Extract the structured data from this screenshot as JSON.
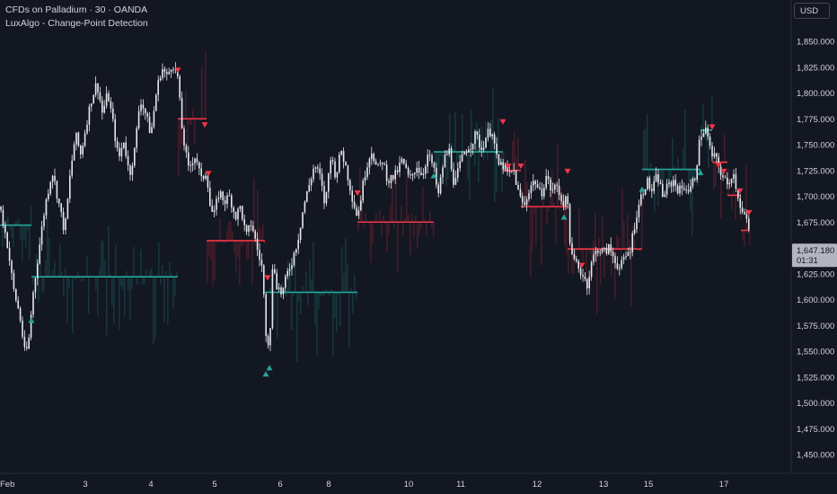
{
  "header": {
    "title": "CFDs on Palladium · 30 · OANDA",
    "indicator": "LuxAlgo - Change-Point Detection"
  },
  "currency": "USD",
  "price_badge": {
    "price": "1,647.180",
    "countdown": "01:31"
  },
  "colors": {
    "background": "#131722",
    "candle": "#e6e8ee",
    "bull": "#26a69a",
    "bear": "#f23645",
    "axis_text": "#d1d4dc",
    "badge": "#b2b5be"
  },
  "chart_data": {
    "type": "line",
    "title": "CFDs on Palladium · 30 · OANDA",
    "indicator": "LuxAlgo - Change-Point Detection",
    "xlabel": "",
    "ylabel": "",
    "ylim": [
      1425,
      1875
    ],
    "y_ticks": [
      1850,
      1825,
      1800,
      1775,
      1750,
      1725,
      1700,
      1675,
      1625,
      1600,
      1575,
      1550,
      1525,
      1500,
      1475,
      1450
    ],
    "y_tick_labels": [
      "1,850.000",
      "1,825.000",
      "1,800.000",
      "1,775.000",
      "1,750.000",
      "1,725.000",
      "1,700.000",
      "1,675.000",
      "1,625.000",
      "1,600.000",
      "1,575.000",
      "1,550.000",
      "1,525.000",
      "1,500.000",
      "1,475.000",
      "1,450.000"
    ],
    "x_tick_labels": [
      "Feb",
      "3",
      "4",
      "5",
      "6",
      "8",
      "10",
      "11",
      "12",
      "13",
      "15",
      "17"
    ],
    "x_tick_index": [
      0,
      95,
      168,
      239,
      312,
      366,
      455,
      513,
      598,
      672,
      722,
      806
    ],
    "x_range": [
      0,
      880
    ],
    "price_path": [
      [
        0,
        1690
      ],
      [
        8,
        1655
      ],
      [
        15,
        1610
      ],
      [
        22,
        1585
      ],
      [
        28,
        1545
      ],
      [
        32,
        1560
      ],
      [
        36,
        1600
      ],
      [
        42,
        1640
      ],
      [
        50,
        1690
      ],
      [
        58,
        1725
      ],
      [
        64,
        1700
      ],
      [
        72,
        1665
      ],
      [
        78,
        1720
      ],
      [
        84,
        1760
      ],
      [
        90,
        1740
      ],
      [
        96,
        1770
      ],
      [
        102,
        1795
      ],
      [
        108,
        1810
      ],
      [
        114,
        1780
      ],
      [
        120,
        1800
      ],
      [
        126,
        1770
      ],
      [
        132,
        1735
      ],
      [
        138,
        1755
      ],
      [
        144,
        1720
      ],
      [
        150,
        1745
      ],
      [
        156,
        1795
      ],
      [
        162,
        1780
      ],
      [
        168,
        1760
      ],
      [
        174,
        1800
      ],
      [
        180,
        1825
      ],
      [
        186,
        1815
      ],
      [
        192,
        1830
      ],
      [
        198,
        1815
      ],
      [
        202,
        1770
      ],
      [
        206,
        1745
      ],
      [
        210,
        1725
      ],
      [
        214,
        1735
      ],
      [
        218,
        1740
      ],
      [
        224,
        1715
      ],
      [
        230,
        1725
      ],
      [
        234,
        1690
      ],
      [
        238,
        1680
      ],
      [
        244,
        1705
      ],
      [
        250,
        1695
      ],
      [
        256,
        1700
      ],
      [
        262,
        1680
      ],
      [
        268,
        1690
      ],
      [
        274,
        1660
      ],
      [
        280,
        1675
      ],
      [
        286,
        1650
      ],
      [
        292,
        1630
      ],
      [
        296,
        1570
      ],
      [
        300,
        1555
      ],
      [
        304,
        1640
      ],
      [
        308,
        1615
      ],
      [
        314,
        1605
      ],
      [
        320,
        1625
      ],
      [
        326,
        1640
      ],
      [
        332,
        1660
      ],
      [
        338,
        1690
      ],
      [
        344,
        1710
      ],
      [
        350,
        1730
      ],
      [
        356,
        1720
      ],
      [
        362,
        1690
      ],
      [
        368,
        1740
      ],
      [
        374,
        1720
      ],
      [
        380,
        1745
      ],
      [
        386,
        1725
      ],
      [
        392,
        1700
      ],
      [
        398,
        1680
      ],
      [
        402,
        1700
      ],
      [
        408,
        1730
      ],
      [
        414,
        1745
      ],
      [
        420,
        1725
      ],
      [
        426,
        1735
      ],
      [
        432,
        1715
      ],
      [
        440,
        1720
      ],
      [
        448,
        1735
      ],
      [
        456,
        1715
      ],
      [
        464,
        1730
      ],
      [
        470,
        1720
      ],
      [
        476,
        1740
      ],
      [
        482,
        1730
      ],
      [
        488,
        1700
      ],
      [
        494,
        1735
      ],
      [
        500,
        1745
      ],
      [
        506,
        1710
      ],
      [
        512,
        1730
      ],
      [
        518,
        1745
      ],
      [
        524,
        1750
      ],
      [
        530,
        1760
      ],
      [
        536,
        1745
      ],
      [
        542,
        1760
      ],
      [
        548,
        1765
      ],
      [
        554,
        1730
      ],
      [
        560,
        1730
      ],
      [
        566,
        1720
      ],
      [
        572,
        1725
      ],
      [
        578,
        1700
      ],
      [
        584,
        1690
      ],
      [
        590,
        1710
      ],
      [
        596,
        1715
      ],
      [
        602,
        1700
      ],
      [
        608,
        1720
      ],
      [
        614,
        1705
      ],
      [
        620,
        1710
      ],
      [
        626,
        1695
      ],
      [
        632,
        1695
      ],
      [
        636,
        1640
      ],
      [
        642,
        1635
      ],
      [
        648,
        1625
      ],
      [
        654,
        1615
      ],
      [
        660,
        1640
      ],
      [
        666,
        1650
      ],
      [
        672,
        1645
      ],
      [
        678,
        1650
      ],
      [
        684,
        1640
      ],
      [
        690,
        1630
      ],
      [
        696,
        1640
      ],
      [
        702,
        1650
      ],
      [
        708,
        1680
      ],
      [
        714,
        1700
      ],
      [
        720,
        1715
      ],
      [
        726,
        1705
      ],
      [
        732,
        1720
      ],
      [
        738,
        1700
      ],
      [
        744,
        1710
      ],
      [
        750,
        1715
      ],
      [
        756,
        1705
      ],
      [
        762,
        1710
      ],
      [
        768,
        1705
      ],
      [
        774,
        1720
      ],
      [
        780,
        1760
      ],
      [
        786,
        1765
      ],
      [
        792,
        1740
      ],
      [
        798,
        1735
      ],
      [
        804,
        1720
      ],
      [
        810,
        1710
      ],
      [
        816,
        1725
      ],
      [
        822,
        1700
      ],
      [
        826,
        1685
      ],
      [
        830,
        1680
      ],
      [
        834,
        1665
      ],
      [
        836,
        1650
      ]
    ],
    "cp_levels": [
      {
        "x0": 0,
        "x1": 35,
        "y": 1672,
        "dir": "bull"
      },
      {
        "x0": 35,
        "x1": 198,
        "y": 1622,
        "dir": "bull"
      },
      {
        "x0": 198,
        "x1": 230,
        "y": 1775,
        "dir": "bear"
      },
      {
        "x0": 230,
        "x1": 295,
        "y": 1657,
        "dir": "bear"
      },
      {
        "x0": 295,
        "x1": 398,
        "y": 1607,
        "dir": "bull"
      },
      {
        "x0": 398,
        "x1": 483,
        "y": 1675,
        "dir": "bear"
      },
      {
        "x0": 483,
        "x1": 560,
        "y": 1743,
        "dir": "bull"
      },
      {
        "x0": 560,
        "x1": 580,
        "y": 1725,
        "dir": "bear"
      },
      {
        "x0": 580,
        "x1": 632,
        "y": 1690,
        "dir": "bear"
      },
      {
        "x0": 632,
        "x1": 715,
        "y": 1649,
        "dir": "bear"
      },
      {
        "x0": 715,
        "x1": 780,
        "y": 1726,
        "dir": "bull"
      },
      {
        "x0": 780,
        "x1": 793,
        "y": 1764,
        "dir": "bull"
      },
      {
        "x0": 793,
        "x1": 810,
        "y": 1733,
        "dir": "bear"
      },
      {
        "x0": 810,
        "x1": 825,
        "y": 1701,
        "dir": "bear"
      },
      {
        "x0": 825,
        "x1": 834,
        "y": 1667,
        "dir": "bear"
      }
    ],
    "signals": [
      {
        "x": 35,
        "y": 1580,
        "dir": "up"
      },
      {
        "x": 198,
        "y": 1822,
        "dir": "down"
      },
      {
        "x": 228,
        "y": 1769,
        "dir": "down"
      },
      {
        "x": 232,
        "y": 1722,
        "dir": "down"
      },
      {
        "x": 296,
        "y": 1528,
        "dir": "up"
      },
      {
        "x": 300,
        "y": 1534,
        "dir": "up"
      },
      {
        "x": 298,
        "y": 1621,
        "dir": "down"
      },
      {
        "x": 398,
        "y": 1703,
        "dir": "down"
      },
      {
        "x": 483,
        "y": 1720,
        "dir": "up"
      },
      {
        "x": 560,
        "y": 1772,
        "dir": "down"
      },
      {
        "x": 566,
        "y": 1729,
        "dir": "down"
      },
      {
        "x": 580,
        "y": 1729,
        "dir": "down"
      },
      {
        "x": 632,
        "y": 1724,
        "dir": "down"
      },
      {
        "x": 628,
        "y": 1680,
        "dir": "up"
      },
      {
        "x": 648,
        "y": 1633,
        "dir": "down"
      },
      {
        "x": 715,
        "y": 1707,
        "dir": "up"
      },
      {
        "x": 780,
        "y": 1723,
        "dir": "up"
      },
      {
        "x": 793,
        "y": 1767,
        "dir": "down"
      },
      {
        "x": 800,
        "y": 1730,
        "dir": "down"
      },
      {
        "x": 806,
        "y": 1724,
        "dir": "down"
      },
      {
        "x": 824,
        "y": 1705,
        "dir": "down"
      },
      {
        "x": 834,
        "y": 1684,
        "dir": "down"
      }
    ],
    "last_price": 1647.18
  }
}
